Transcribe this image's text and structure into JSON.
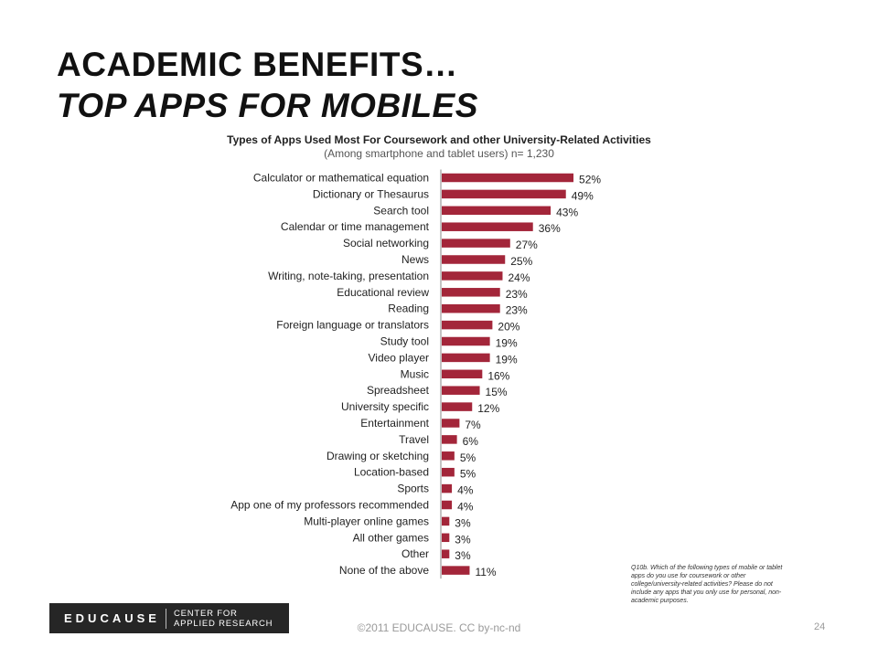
{
  "header": {
    "title_line1": "ACADEMIC BENEFITS…",
    "title_line2": "TOP APPS FOR MOBILES"
  },
  "chart_data": {
    "type": "bar",
    "orientation": "horizontal",
    "title": "Types of Apps Used Most For Coursework and other University-Related Activities",
    "subtitle": "(Among smartphone and tablet users) n= 1,230",
    "categories": [
      "Calculator or mathematical equation",
      "Dictionary or Thesaurus",
      "Search tool",
      "Calendar or time management",
      "Social networking",
      "News",
      "Writing, note-taking, presentation",
      "Educational review",
      "Reading",
      "Foreign language or translators",
      "Study tool",
      "Video player",
      "Music",
      "Spreadsheet",
      "University specific",
      "Entertainment",
      "Travel",
      "Drawing or sketching",
      "Location-based",
      "Sports",
      "App one of my professors recommended",
      "Multi-player online games",
      "All other games",
      "Other",
      "None of the above"
    ],
    "values": [
      52,
      49,
      43,
      36,
      27,
      25,
      24,
      23,
      23,
      20,
      19,
      19,
      16,
      15,
      12,
      7,
      6,
      5,
      5,
      4,
      4,
      3,
      3,
      3,
      11
    ],
    "value_suffix": "%",
    "bar_color": "#a3263a",
    "xlim": [
      0,
      100
    ],
    "grid": false
  },
  "note": "Q10b. Which of the following types of mobile or tablet apps do you use for coursework or other college/university-related activities? Please do not include any apps that you only use for personal, non-academic purposes.",
  "logo": {
    "main": "EDUCAUSE",
    "sub_line1": "CENTER FOR",
    "sub_line2": "APPLIED RESEARCH"
  },
  "footer": {
    "copyright": "©2011 EDUCAUSE. CC by-nc-nd",
    "page_number": "24"
  }
}
